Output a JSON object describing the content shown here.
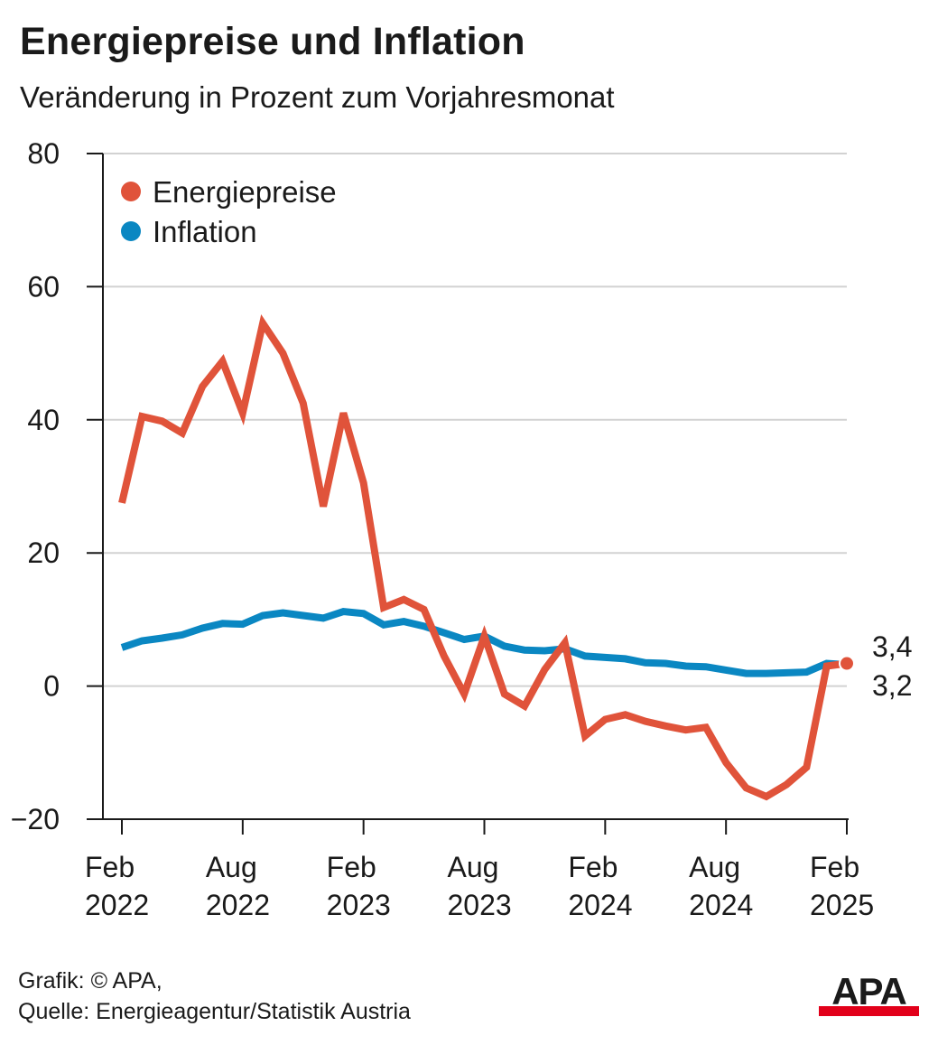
{
  "title": "Energiepreise und Inflation",
  "subtitle": "Veränderung in Prozent zum Vorjahresmonat",
  "footer": {
    "credit": "Grafik: © APA,",
    "source": "Quelle: Energieagentur/Statistik Austria"
  },
  "logo": {
    "text": "APA",
    "colors": {
      "text": "#1a1a1a",
      "bar": "#e2001a"
    }
  },
  "chart_data": {
    "type": "line",
    "ylim": [
      -20,
      80
    ],
    "yticks": [
      -20,
      0,
      20,
      40,
      60,
      80
    ],
    "ytick_labels": [
      "−20",
      "0",
      "20",
      "40",
      "60",
      "80"
    ],
    "grid": true,
    "legend_position": "top-left",
    "x_ticks": [
      {
        "index": 0,
        "label_top": "Feb",
        "label_bottom": "2022"
      },
      {
        "index": 6,
        "label_top": "Aug",
        "label_bottom": "2022"
      },
      {
        "index": 12,
        "label_top": "Feb",
        "label_bottom": "2023"
      },
      {
        "index": 18,
        "label_top": "Aug",
        "label_bottom": "2023"
      },
      {
        "index": 24,
        "label_top": "Feb",
        "label_bottom": "2024"
      },
      {
        "index": 30,
        "label_top": "Aug",
        "label_bottom": "2024"
      },
      {
        "index": 36,
        "label_top": "Feb",
        "label_bottom": "2025"
      }
    ],
    "x": [
      "2022-02",
      "2022-03",
      "2022-04",
      "2022-05",
      "2022-06",
      "2022-07",
      "2022-08",
      "2022-09",
      "2022-10",
      "2022-11",
      "2022-12",
      "2023-01",
      "2023-02",
      "2023-03",
      "2023-04",
      "2023-05",
      "2023-06",
      "2023-07",
      "2023-08",
      "2023-09",
      "2023-10",
      "2023-11",
      "2023-12",
      "2024-01",
      "2024-02",
      "2024-03",
      "2024-04",
      "2024-05",
      "2024-06",
      "2024-07",
      "2024-08",
      "2024-09",
      "2024-10",
      "2024-11",
      "2024-12",
      "2025-01",
      "2025-02"
    ],
    "series": [
      {
        "name": "Energiepreise",
        "color": "#e0533a",
        "end_label": "3,4",
        "values": [
          27.5,
          40.5,
          39.8,
          38,
          45,
          48.8,
          41,
          54.5,
          50,
          42.5,
          27,
          41,
          30.5,
          11.8,
          13,
          11.5,
          4.5,
          -1.2,
          7.5,
          -1.2,
          -3,
          2.5,
          6.5,
          -7.5,
          -5,
          -4.3,
          -5.3,
          -6,
          -6.6,
          -6.2,
          -11.5,
          -15.3,
          -16.6,
          -14.8,
          -12.2,
          3,
          3.4
        ]
      },
      {
        "name": "Inflation",
        "color": "#0a87c2",
        "end_label": "3,2",
        "values": [
          5.8,
          6.8,
          7.2,
          7.7,
          8.7,
          9.4,
          9.3,
          10.6,
          11,
          10.6,
          10.2,
          11.2,
          10.9,
          9.2,
          9.7,
          9,
          8,
          7,
          7.5,
          6,
          5.4,
          5.3,
          5.6,
          4.5,
          4.3,
          4.1,
          3.5,
          3.4,
          3,
          2.9,
          2.4,
          1.9,
          1.9,
          2,
          2.1,
          3.4,
          3.2
        ]
      }
    ]
  }
}
